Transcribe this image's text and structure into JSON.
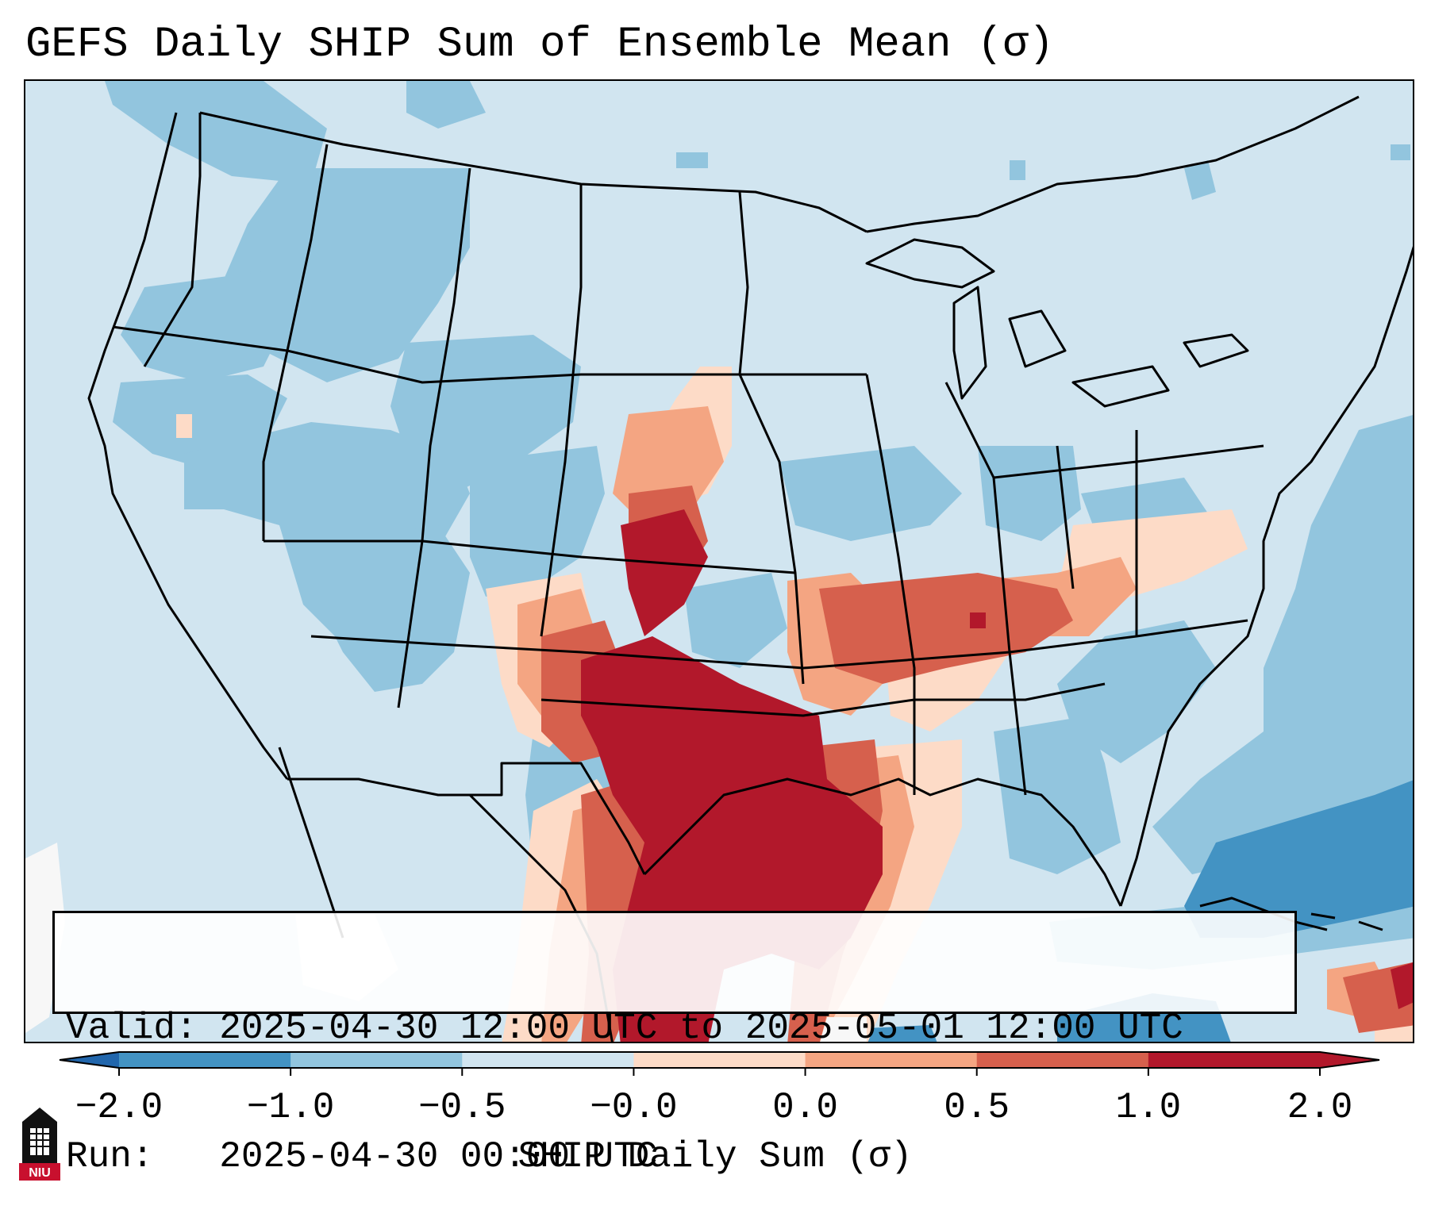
{
  "title": "GEFS Daily SHIP Sum of Ensemble Mean (σ)",
  "info": {
    "valid_label": "Valid:",
    "valid_value": "2025-04-30 12:00 UTC to 2025-05-01 12:00 UTC",
    "run_label": "Run:",
    "run_value": "2025-04-30 00:00 UTC"
  },
  "colorbar": {
    "label": "SHIP Daily Sum (σ)",
    "extend": "both",
    "ticks": [
      "−2.0",
      "−1.0",
      "−0.5",
      "−0.0",
      "0.0",
      "0.5",
      "1.0",
      "2.0"
    ],
    "colors": [
      "#4393c3",
      "#92c5de",
      "#d1e5f0",
      "#f7f7f7",
      "#fddbc7",
      "#f4a582",
      "#d6604d",
      "#b2182b"
    ],
    "under_color": "#2166ac",
    "over_color": "#b2182b"
  },
  "logo": {
    "text": "NIU",
    "icon": "university-tower-logo"
  },
  "map": {
    "projection": "Lambert Conformal (CONUS)",
    "basemap": "state-borders-and-coastlines",
    "highlight_region": "southern-plains-lower-mississippi-valley",
    "max_category_color": "#b2182b"
  }
}
